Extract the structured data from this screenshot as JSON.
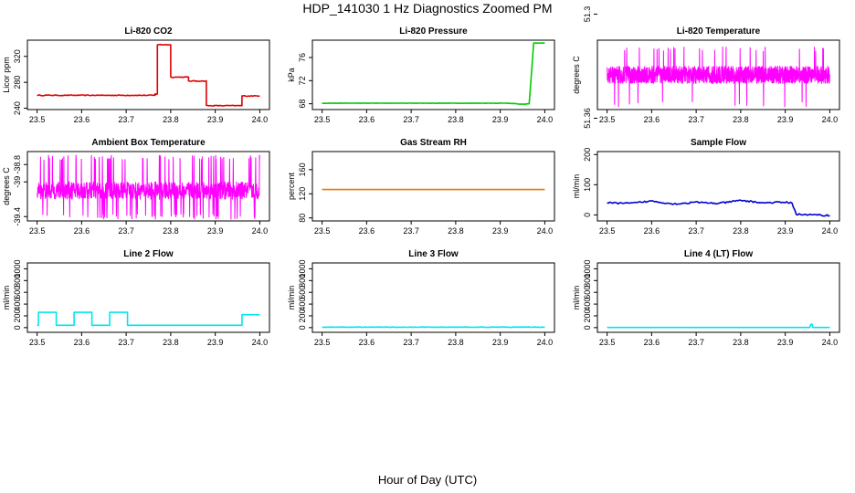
{
  "title": "HDP_141030  1 Hz Diagnostics Zoomed PM",
  "xlabel": "Hour of Day (UTC)",
  "chart_data": [
    {
      "type": "line",
      "title": "Li-820 CO2",
      "ylabel": "Licor ppm",
      "color": "#dd0000",
      "xlim": [
        23.5,
        24.0
      ],
      "ylim": [
        238,
        345
      ],
      "xticks": [
        "23.5",
        "23.6",
        "23.7",
        "23.8",
        "23.9",
        "24.0"
      ],
      "yticks": [
        240,
        280,
        320
      ],
      "series": [
        {
          "mode": "step",
          "noise": 0.6,
          "x": [
            23.5,
            23.765,
            23.77,
            23.8,
            23.84,
            23.88,
            23.96,
            24.0
          ],
          "y": [
            260,
            262,
            338,
            288,
            282,
            244,
            259,
            259
          ]
        }
      ]
    },
    {
      "type": "line",
      "title": "Li-820 Pressure",
      "ylabel": "kPa",
      "color": "#00cc00",
      "xlim": [
        23.5,
        24.0
      ],
      "ylim": [
        67,
        79
      ],
      "xticks": [
        "23.5",
        "23.6",
        "23.7",
        "23.8",
        "23.9",
        "24.0"
      ],
      "yticks": [
        68,
        72,
        76
      ],
      "series": [
        {
          "mode": "line",
          "noise": 0.03,
          "x": [
            23.5,
            23.92,
            23.95,
            23.965,
            23.975,
            24.0
          ],
          "y": [
            68.1,
            68.1,
            67.9,
            68.0,
            78.5,
            78.5
          ]
        }
      ]
    },
    {
      "type": "line",
      "title": "Li-820 Temperature",
      "ylabel": "degrees C",
      "color": "#ff00ff",
      "xlim": [
        23.5,
        24.0
      ],
      "ylim": [
        51.355,
        51.315
      ],
      "xticks": [
        "23.5",
        "23.6",
        "23.7",
        "23.8",
        "23.9",
        "24.0"
      ],
      "yticks": [
        51.36,
        51.3
      ],
      "series": [
        {
          "mode": "band",
          "low": 51.33,
          "high": 51.34,
          "spike_low": 51.352,
          "spike_high": 51.32,
          "density": 6,
          "spikes": 40,
          "x": [
            23.5,
            24.0
          ],
          "y": [
            51.33,
            51.34
          ]
        }
      ]
    },
    {
      "type": "line",
      "title": "Ambient Box Temperature",
      "ylabel": "degrees C",
      "color": "#ff00ff",
      "xlim": [
        23.5,
        24.0
      ],
      "ylim": [
        -39.45,
        -38.65
      ],
      "xticks": [
        "23.5",
        "23.6",
        "23.7",
        "23.8",
        "23.9",
        "24.0"
      ],
      "yticks": [
        -39.4,
        -39.0,
        -38.8
      ],
      "series": [
        {
          "mode": "band",
          "low": -39.2,
          "high": -39.0,
          "spike_low": -39.4,
          "spike_high": -38.72,
          "density": 4,
          "spikes": 120,
          "x": [
            23.5,
            24.0
          ],
          "y": [
            -39.2,
            -39.0
          ]
        }
      ]
    },
    {
      "type": "line",
      "title": "Gas Stream RH",
      "ylabel": "percent",
      "color": "#ee7700",
      "xlim": [
        23.5,
        24.0
      ],
      "ylim": [
        75,
        190
      ],
      "xticks": [
        "23.5",
        "23.6",
        "23.7",
        "23.8",
        "23.9",
        "24.0"
      ],
      "yticks": [
        80,
        120,
        160
      ],
      "series": [
        {
          "mode": "line",
          "noise": 0.0,
          "x": [
            23.5,
            24.0
          ],
          "y": [
            127,
            127
          ]
        }
      ]
    },
    {
      "type": "line",
      "title": "Sample Flow",
      "ylabel": "ml/min",
      "color": "#0000cc",
      "xlim": [
        23.5,
        24.0
      ],
      "ylim": [
        -20,
        210
      ],
      "xticks": [
        "23.5",
        "23.6",
        "23.7",
        "23.8",
        "23.9",
        "24.0"
      ],
      "yticks": [
        0,
        100,
        200
      ],
      "series": [
        {
          "mode": "line",
          "noise": 2.5,
          "x": [
            23.5,
            23.55,
            23.6,
            23.65,
            23.7,
            23.75,
            23.8,
            23.85,
            23.9,
            23.915,
            23.925,
            24.0
          ],
          "y": [
            40,
            38,
            46,
            36,
            42,
            38,
            48,
            40,
            42,
            40,
            2,
            -2
          ]
        }
      ]
    },
    {
      "type": "line",
      "title": "Line 2 Flow",
      "ylabel": "ml/min",
      "color": "#00e5ee",
      "xlim": [
        23.5,
        24.0
      ],
      "ylim": [
        -80,
        1100
      ],
      "xticks": [
        "23.5",
        "23.6",
        "23.7",
        "23.8",
        "23.9",
        "24.0"
      ],
      "yticks": [
        0,
        200,
        400,
        600,
        800,
        1000
      ],
      "series": [
        {
          "mode": "step",
          "noise": 0.0,
          "x": [
            23.5,
            23.503,
            23.543,
            23.583,
            23.623,
            23.663,
            23.703,
            23.96,
            24.0
          ],
          "y": [
            40,
            260,
            40,
            260,
            40,
            260,
            40,
            220,
            220
          ]
        }
      ]
    },
    {
      "type": "line",
      "title": "Line 3 Flow",
      "ylabel": "ml/min",
      "color": "#00e5ee",
      "xlim": [
        23.5,
        24.0
      ],
      "ylim": [
        -80,
        1100
      ],
      "xticks": [
        "23.5",
        "23.6",
        "23.7",
        "23.8",
        "23.9",
        "24.0"
      ],
      "yticks": [
        0,
        200,
        400,
        600,
        800,
        1000
      ],
      "series": [
        {
          "mode": "line",
          "noise": 4,
          "x": [
            23.5,
            24.0
          ],
          "y": [
            8,
            8
          ]
        }
      ]
    },
    {
      "type": "line",
      "title": "Line 4 (LT) Flow",
      "ylabel": "ml/min",
      "color": "#00e5ee",
      "xlim": [
        23.5,
        24.0
      ],
      "ylim": [
        -80,
        1100
      ],
      "xticks": [
        "23.5",
        "23.6",
        "23.7",
        "23.8",
        "23.9",
        "24.0"
      ],
      "yticks": [
        0,
        200,
        400,
        600,
        800,
        1000
      ],
      "series": [
        {
          "mode": "line",
          "noise": 0.5,
          "x": [
            23.5,
            23.955,
            23.957,
            23.96,
            23.962,
            24.0
          ],
          "y": [
            2,
            2,
            50,
            60,
            2,
            2
          ]
        }
      ]
    }
  ]
}
